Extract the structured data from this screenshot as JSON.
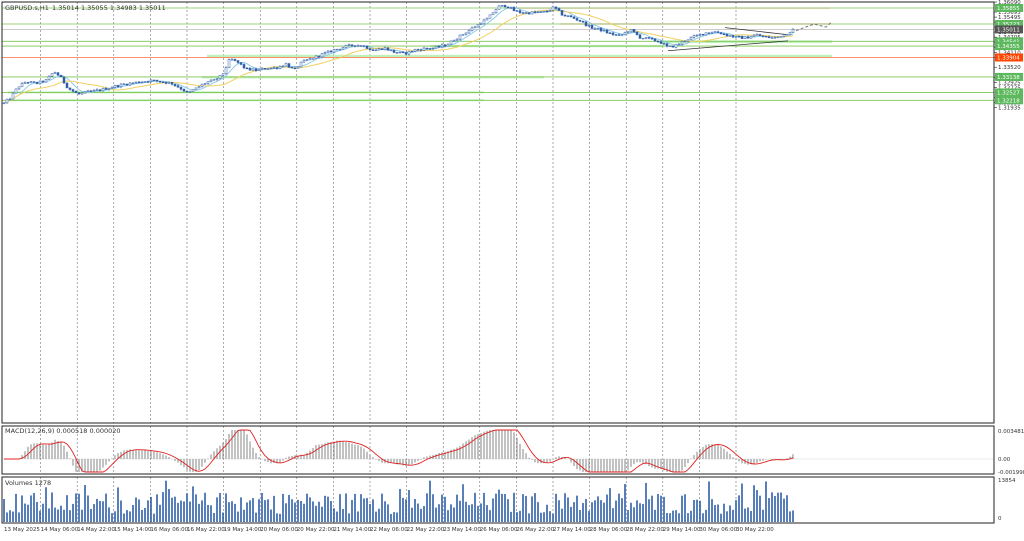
{
  "chart_data": {
    "type": "candlestick",
    "symbol_title": "GBPUSD.s,H1",
    "ohlc_header": "1.35014 1.35055 1.34983 1.35011",
    "macd_label": "MACD(12,26,9) 0.000518 0.000020",
    "volumes_label": "Volumes 1278",
    "price_axis": {
      "min": 1.19505,
      "max": 1.3609,
      "ticks": [
        "1.36090",
        "1.35695",
        "1.35495",
        "1.35300",
        "1.35100",
        "1.34905",
        "1.34705",
        "1.34510",
        "1.34310",
        "1.34110",
        "1.33910",
        "1.33520",
        "1.33120",
        "1.32925",
        "1.32725",
        "1.32330",
        "1.32130",
        "1.31935"
      ]
    },
    "level_labels": [
      {
        "text": "1.35855",
        "price": 1.35855,
        "color": "#5cb85c"
      },
      {
        "text": "1.35223",
        "price": 1.35223,
        "color": "#5cb85c"
      },
      {
        "text": "1.35011",
        "price": 1.35011,
        "color": "#555555"
      },
      {
        "text": "1.34541",
        "price": 1.34541,
        "color": "#5cb85c"
      },
      {
        "text": "1.34355",
        "price": 1.34355,
        "color": "#5cb85c"
      },
      {
        "text": "1.33904",
        "price": 1.33904,
        "color": "#ff4500"
      },
      {
        "text": "1.33138",
        "price": 1.33138,
        "color": "#5cb85c"
      },
      {
        "text": "1.32527",
        "price": 1.32527,
        "color": "#5cb85c"
      },
      {
        "text": "1.32218",
        "price": 1.32218,
        "color": "#5cb85c"
      }
    ],
    "macd_axis": {
      "ticks": [
        "0.003481",
        "0.00",
        "-0.001998"
      ]
    },
    "volume_axis": {
      "ticks": [
        "13854",
        "0"
      ]
    },
    "time_labels": [
      "13 May 2025",
      "14 May 06:00",
      "14 May 22:00",
      "15 May 14:00",
      "16 May 06:00",
      "16 May 22:00",
      "19 May 14:00",
      "20 May 06:00",
      "20 May 22:00",
      "21 May 14:00",
      "22 May 06:00",
      "22 May 22:00",
      "23 May 14:00",
      "26 May 06:00",
      "26 May 22:00",
      "27 May 14:00",
      "28 May 06:00",
      "28 May 22:00",
      "29 May 14:00",
      "30 May 06:00",
      "30 May 22:00"
    ],
    "colors": {
      "bull_candle": "#2f5fa8",
      "bear_candle": "#2f5fa8",
      "ma_fast": "#87c7e8",
      "ma_slow": "#f0d060",
      "macd_signal": "#e02020",
      "macd_hist": "#9a9a9a",
      "volume_bar": "#2f5fa8",
      "support_zone": "#b6f0b0",
      "resistance_zone": "#f8d8d4",
      "green_line": "#7dc450",
      "red_line": "#ff6a3d"
    }
  }
}
